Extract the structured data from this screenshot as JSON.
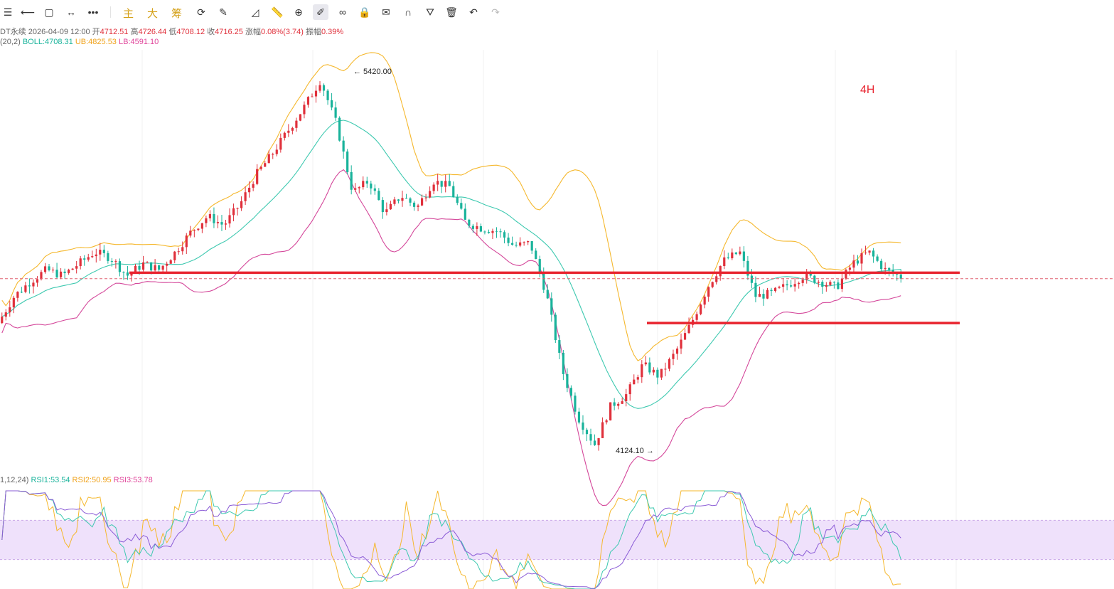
{
  "toolbar": {
    "icons": [
      "menu-icon",
      "horizontal-line-icon",
      "rectangle-icon",
      "range-icon",
      "more-icon",
      "segment-icon",
      "ruler-icon",
      "zoom-icon",
      "brush-icon",
      "pattern-icon",
      "lock-icon",
      "edit-icon",
      "magnet-icon",
      "filter-icon",
      "trash-icon",
      "undo-icon",
      "redo-icon"
    ],
    "chip_labels": [
      "主",
      "大",
      "筹"
    ]
  },
  "ohlc": {
    "symbol": "DT永续",
    "datetime": "2026-04-09 12:00",
    "open_label": "开",
    "open": "4712.51",
    "high_label": "高",
    "high": "4726.44",
    "low_label": "低",
    "low": "4708.12",
    "close_label": "收",
    "close": "4716.25",
    "change_label": "涨幅",
    "change": "0.08%(3.74)",
    "amp_label": "振幅",
    "amp": "0.39%"
  },
  "boll": {
    "params": "(20,2)",
    "mid": "BOLL:4708.31",
    "ub": "UB:4825.53",
    "lb": "LB:4591.10"
  },
  "rsi": {
    "params": "1,12,24)",
    "rsi1": "RSI1:53.54",
    "rsi2": "RSI2:50.95",
    "rsi3": "RSI3:53.78"
  },
  "annotations": {
    "high_marker": "← 5420.00",
    "low_marker": "4124.10 →",
    "timeframe": "4H"
  },
  "colors": {
    "up": "#e0303b",
    "down": "#19b39b",
    "boll_mid": "#3ec9b0",
    "boll_ub": "#f5b82e",
    "boll_lb": "#d4479a",
    "drawing_line": "#e8242f",
    "rsi_band": "#efe1fb"
  },
  "chart_data": {
    "type": "candlestick",
    "high_value": 5420.0,
    "low_value": 4124.1,
    "resistance_level": 4730,
    "support_level": 4560,
    "price_path": [
      4560,
      4650,
      4700,
      4740,
      4720,
      4760,
      4800,
      4780,
      4720,
      4760,
      4740,
      4800,
      4870,
      4920,
      4890,
      4960,
      5060,
      5130,
      5210,
      5290,
      5380,
      5230,
      5000,
      5040,
      4930,
      4990,
      4950,
      5040,
      5020,
      4900,
      4880,
      4870,
      4820,
      4830,
      4660,
      4400,
      4240,
      4150,
      4280,
      4320,
      4420,
      4380,
      4460,
      4560,
      4680,
      4770,
      4800,
      4650,
      4660,
      4690,
      4720,
      4700,
      4680,
      4760,
      4800,
      4740,
      4716
    ],
    "rsi_level_top": 70,
    "rsi_level_bottom": 30
  }
}
